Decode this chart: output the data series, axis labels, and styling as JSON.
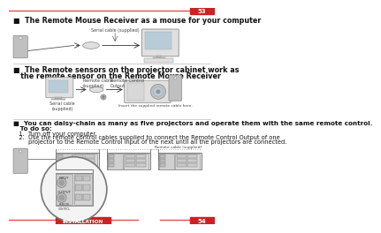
{
  "page_bg": "#ffffff",
  "top_line_color": "#e05050",
  "bottom_line_color": "#e05050",
  "page_num_top": "53",
  "page_num_bottom": "54",
  "page_num_bg": "#cc2222",
  "page_num_fg": "#ffffff",
  "install_label": "INSTALLATION",
  "install_bg": "#cc2222",
  "install_fg": "#ffffff",
  "s1_text": "■  The Remote Mouse Receiver as a mouse for your computer",
  "s2_text_l1": "■  The Remote sensors on the projector cabinet work as",
  "s2_text_l2": "   the remote sensor on the Remote Mouse Receiver",
  "s3_text_l1": "■  You can daisy-chain as many as five projectors and operate them with the same remote control.",
  "s3_text_l2": "   To do so:",
  "s3_text_l3": "   1.  Turn off your computer.",
  "s3_text_l4": "   2.  Use the remote control cables supplied to connect the Remote Control Output of one",
  "s3_text_l5": "        projector to the Remote Control Input of the next until all the projectors are connected.",
  "lbl_serial": "Serial cable (supplied)",
  "lbl_serial2": "Serial cable\n(supplied)",
  "lbl_remote_cable": "Remote cable\n(supplied)",
  "lbl_rc_output": "Remote Control\nOutput",
  "lbl_insert": "Insert the supplied remote cable here.",
  "lbl_remote_supplied": "Remote cable (supplied)",
  "text_color": "#111111",
  "bold_color": "#111111",
  "label_color": "#444444",
  "divider_color": "#bbbbbb",
  "gray_light": "#e0e0e0",
  "gray_mid": "#c0c0c0",
  "gray_dark": "#888888",
  "blue_screen": "#b8ccd8",
  "dot_color": "#999999"
}
